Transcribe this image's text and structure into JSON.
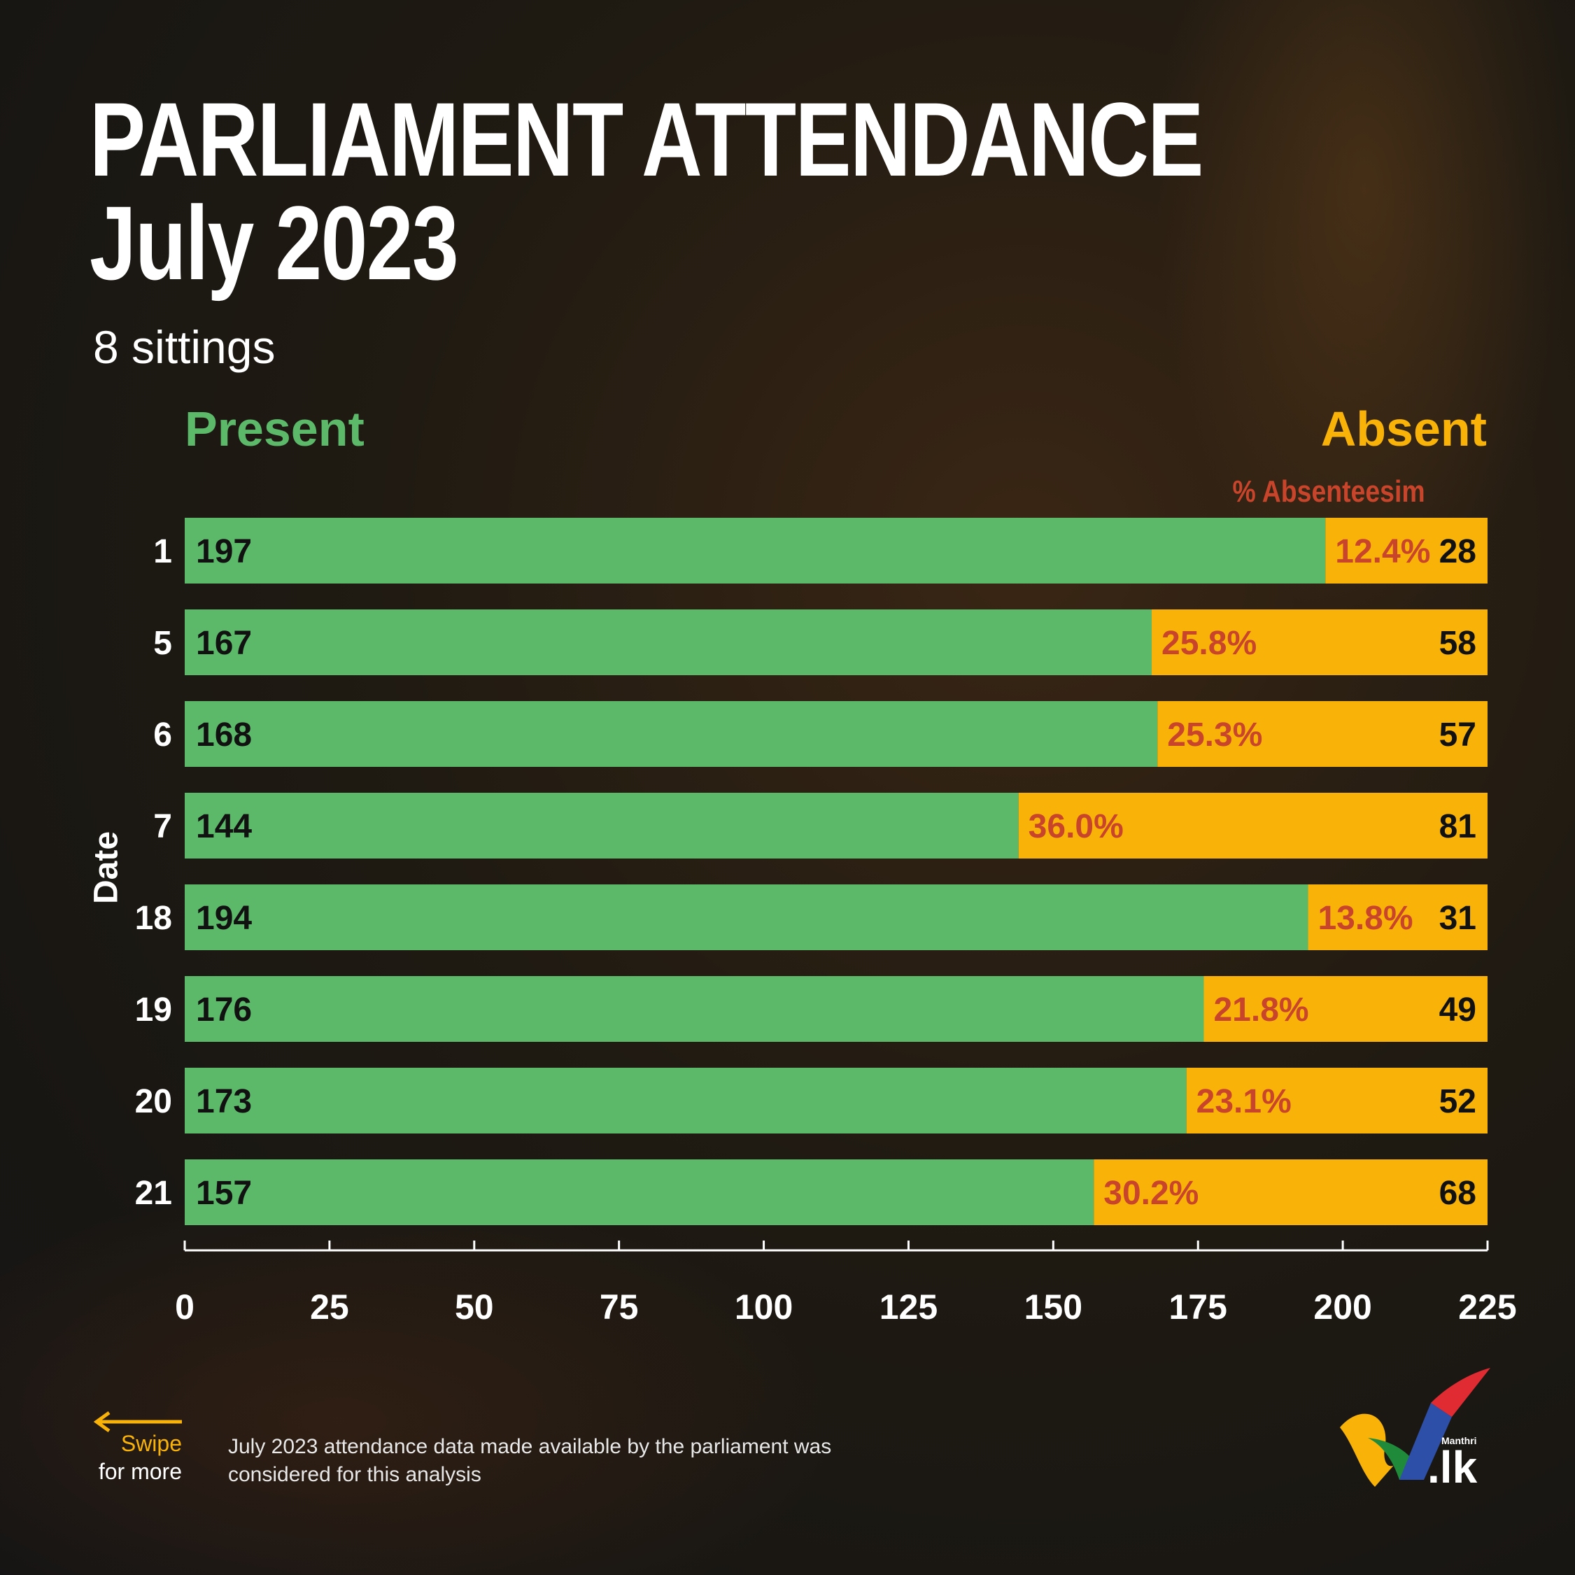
{
  "header": {
    "title_line1": "PARLIAMENT ATTENDANCE",
    "title_line2": "July 2023",
    "subtitle": "8 sittings"
  },
  "legend": {
    "present": "Present",
    "absent": "Absent",
    "pct": "% Absenteesim"
  },
  "footer": {
    "swipe_line1": "Swipe",
    "swipe_line2": "for more",
    "note": "July 2023 attendance data made available by the parliament was considered for this analysis",
    "brand_small": "Manthri",
    "brand_lk": ".lk"
  },
  "colors": {
    "present": "#5cb96a",
    "absent": "#f9b208",
    "pct": "#c8442a",
    "background": "#181818"
  },
  "chart_data": {
    "type": "bar",
    "orientation": "horizontal",
    "stacked": true,
    "ylabel": "Date",
    "categories": [
      "1",
      "5",
      "6",
      "7",
      "18",
      "19",
      "20",
      "21"
    ],
    "series": [
      {
        "name": "Present",
        "values": [
          197,
          167,
          168,
          144,
          194,
          176,
          173,
          157
        ]
      },
      {
        "name": "Absent",
        "values": [
          28,
          58,
          57,
          81,
          31,
          49,
          52,
          68
        ]
      }
    ],
    "absenteeism_pct": [
      "12.4%",
      "25.8%",
      "25.3%",
      "36.0%",
      "13.8%",
      "21.8%",
      "23.1%",
      "30.2%"
    ],
    "xlim": [
      0,
      225
    ],
    "xticks": [
      0,
      25,
      50,
      75,
      100,
      125,
      150,
      175,
      200,
      225
    ],
    "grid": false
  }
}
